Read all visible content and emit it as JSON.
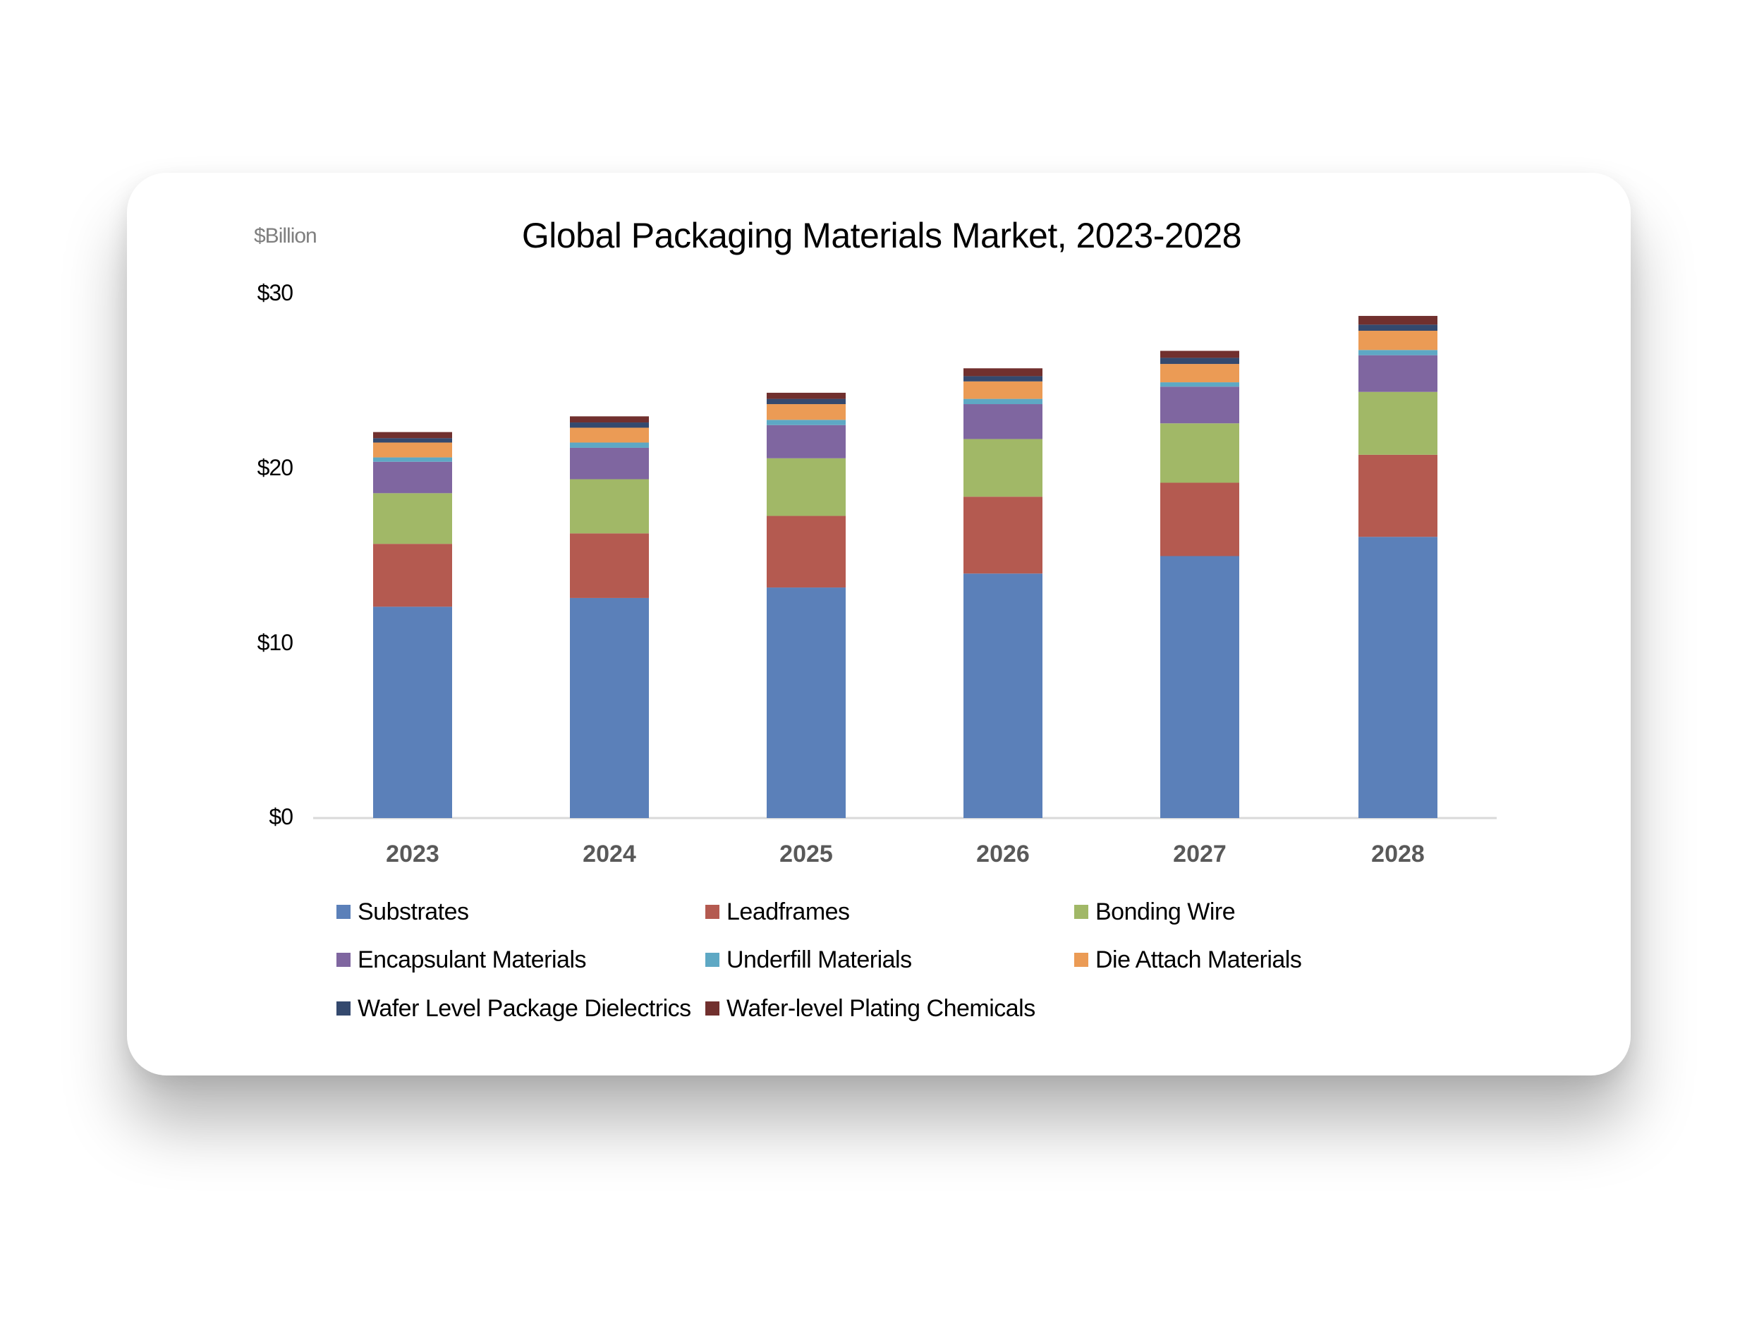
{
  "chart_data": {
    "type": "bar",
    "stacked": true,
    "title": "Global Packaging Materials Market, 2023-2028",
    "unit_label": "$Billion",
    "xlabel": "",
    "ylabel": "$Billion",
    "ylim": [
      0,
      30
    ],
    "yticks": [
      0,
      10,
      20,
      30
    ],
    "ytick_labels": [
      "$0",
      "$10",
      "$20",
      "$30"
    ],
    "grid": false,
    "legend_position": "bottom",
    "categories": [
      "2023",
      "2024",
      "2025",
      "2026",
      "2027",
      "2028"
    ],
    "series": [
      {
        "name": "Substrates",
        "color": "#5b80b9",
        "values": [
          12.1,
          12.6,
          13.2,
          14.0,
          15.0,
          16.1
        ]
      },
      {
        "name": "Leadframes",
        "color": "#b45a50",
        "values": [
          3.6,
          3.7,
          4.1,
          4.4,
          4.2,
          4.7
        ]
      },
      {
        "name": "Bonding Wire",
        "color": "#a1b867",
        "values": [
          2.9,
          3.1,
          3.3,
          3.3,
          3.4,
          3.6
        ]
      },
      {
        "name": "Encapsulant Materials",
        "color": "#7f66a0",
        "values": [
          1.8,
          1.8,
          1.9,
          2.0,
          2.1,
          2.1
        ]
      },
      {
        "name": "Underfill Materials",
        "color": "#5ea8c4",
        "values": [
          0.25,
          0.3,
          0.3,
          0.3,
          0.25,
          0.3
        ]
      },
      {
        "name": "Die Attach Materials",
        "color": "#eb9b55",
        "values": [
          0.85,
          0.85,
          0.9,
          1.0,
          1.05,
          1.1
        ]
      },
      {
        "name": "Wafer Level Package Dielectrics",
        "color": "#34496e",
        "values": [
          0.25,
          0.3,
          0.3,
          0.3,
          0.35,
          0.35
        ]
      },
      {
        "name": "Wafer-level Plating Chemicals",
        "color": "#71302e",
        "values": [
          0.35,
          0.35,
          0.35,
          0.45,
          0.4,
          0.5
        ]
      }
    ]
  }
}
